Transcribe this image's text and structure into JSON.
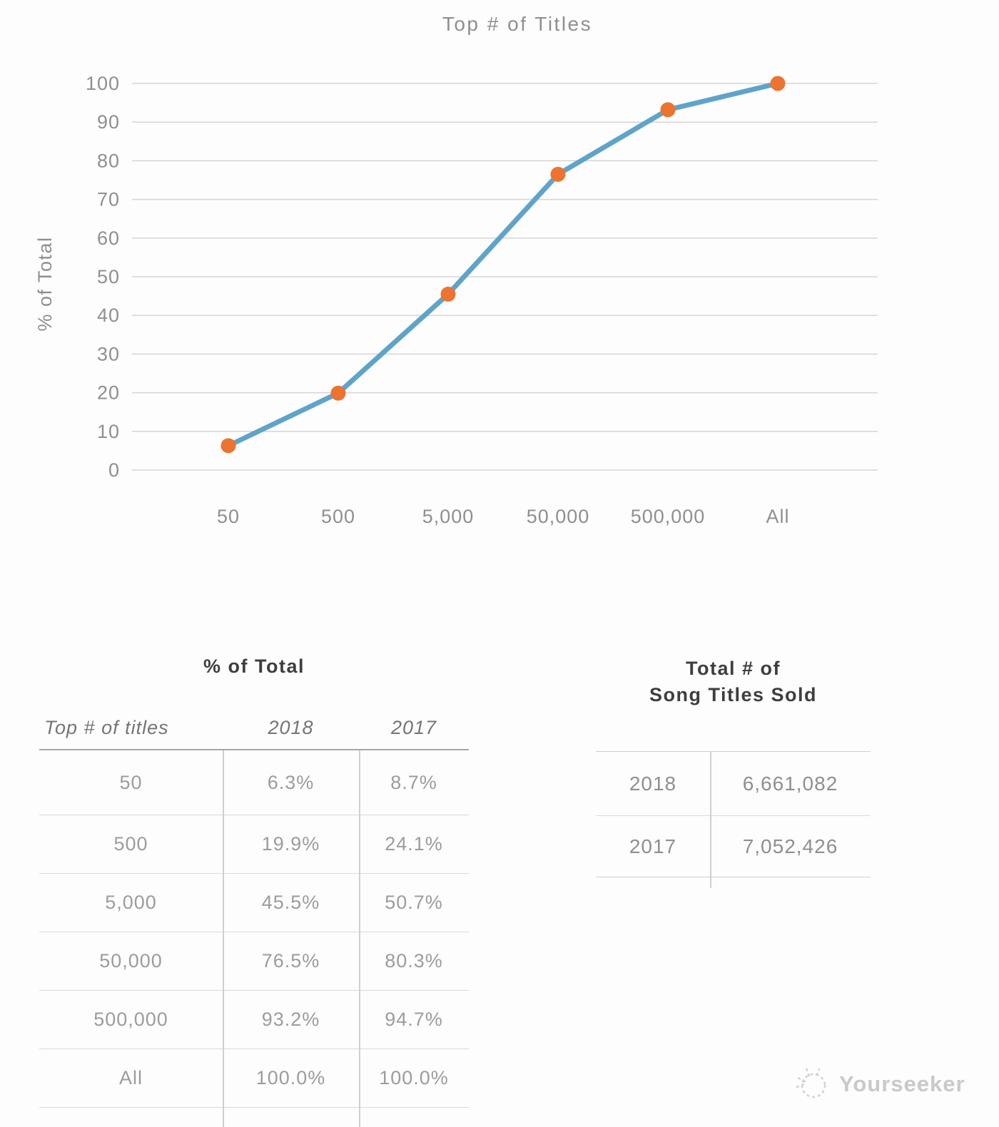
{
  "chart_data": {
    "type": "line",
    "title": "Top # of Titles",
    "xlabel": "",
    "ylabel": "% of Total",
    "categories": [
      "50",
      "500",
      "5,000",
      "50,000",
      "500,000",
      "All"
    ],
    "series": [
      {
        "name": "2018",
        "values": [
          6.3,
          19.9,
          45.5,
          76.5,
          93.2,
          100.0
        ]
      }
    ],
    "ylim": [
      0,
      100
    ],
    "y_ticks": [
      0,
      10,
      20,
      30,
      40,
      50,
      60,
      70,
      80,
      90,
      100
    ],
    "grid": true,
    "legend": false,
    "line_color": "#5fa4c8",
    "marker_color": "#ec7330",
    "grid_color": "#d5d5d5",
    "label_color": "#8f8f8f"
  },
  "tables": {
    "percent_of_total": {
      "title": "% of Total",
      "columns": [
        "Top # of titles",
        "2018",
        "2017"
      ],
      "rows": [
        [
          "50",
          "6.3%",
          "8.7%"
        ],
        [
          "500",
          "19.9%",
          "24.1%"
        ],
        [
          "5,000",
          "45.5%",
          "50.7%"
        ],
        [
          "50,000",
          "76.5%",
          "80.3%"
        ],
        [
          "500,000",
          "93.2%",
          "94.7%"
        ],
        [
          "All",
          "100.0%",
          "100.0%"
        ]
      ]
    },
    "titles_sold": {
      "title_line1": "Total # of",
      "title_line2": "Song Titles Sold",
      "rows": [
        [
          "2018",
          "6,661,082"
        ],
        [
          "2017",
          "7,052,426"
        ]
      ]
    }
  },
  "watermark": {
    "label": "Yourseeker"
  }
}
